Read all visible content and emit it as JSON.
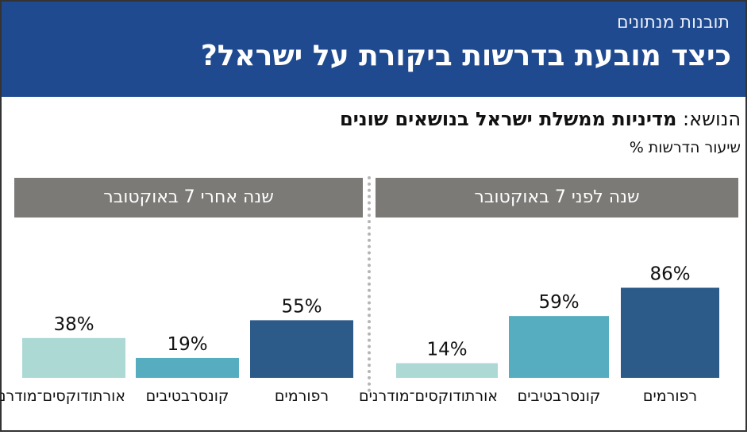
{
  "header": {
    "kicker": "תובנות מנתונים",
    "title": "כיצד מובעת בדרשות ביקורת על ישראל?"
  },
  "topic": {
    "label": "הנושא:",
    "value": "מדיניות ממשלת ישראל בנושאים שונים"
  },
  "measure_label": "שיעור הדרשות %",
  "colors": {
    "header_bg": "#1f4a8f",
    "panel_head_bg": "#7b7a77",
    "reform": "#2c5b8a",
    "conservative": "#56adc0",
    "orthodox": "#acd9d4"
  },
  "chart_data": [
    {
      "type": "bar",
      "title": "שנה לפני 7 באוקטובר",
      "categories": [
        "רפורמים",
        "קונסרבטיבים",
        "אורתודוקסים־מודרנים"
      ],
      "values": [
        86,
        59,
        14
      ],
      "value_labels": [
        "86%",
        "59%",
        "14%"
      ],
      "ylim": [
        0,
        100
      ]
    },
    {
      "type": "bar",
      "title": "שנה אחרי 7 באוקטובר",
      "categories": [
        "רפורמים",
        "קונסרבטיבים",
        "אורתודוקסים־מודרנים"
      ],
      "values": [
        55,
        19,
        38
      ],
      "value_labels": [
        "55%",
        "19%",
        "38%"
      ],
      "ylim": [
        0,
        100
      ]
    }
  ]
}
